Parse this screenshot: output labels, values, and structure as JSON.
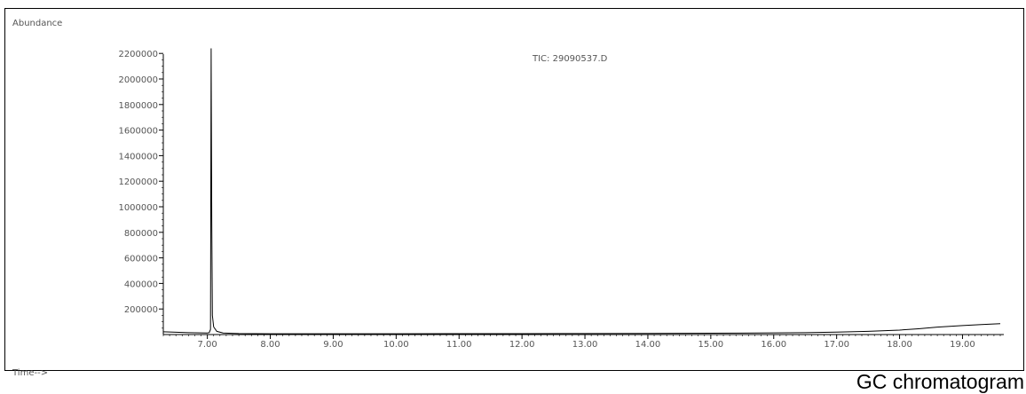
{
  "chart_data": {
    "type": "line",
    "title": "TIC: 29090537.D",
    "ylabel": "Abundance",
    "xlabel": "Time-->",
    "xlim": [
      6.3,
      19.6
    ],
    "ylim": [
      0,
      2250000
    ],
    "x_ticks": [
      "7.00",
      "8.00",
      "9.00",
      "10.00",
      "11.00",
      "12.00",
      "13.00",
      "14.00",
      "15.00",
      "16.00",
      "17.00",
      "18.00",
      "19.00"
    ],
    "x_tick_values": [
      7,
      8,
      9,
      10,
      11,
      12,
      13,
      14,
      15,
      16,
      17,
      18,
      19
    ],
    "y_ticks": [
      "200000",
      "400000",
      "600000",
      "800000",
      "1000000",
      "1200000",
      "1400000",
      "1600000",
      "1800000",
      "2000000",
      "2200000"
    ],
    "y_tick_values": [
      200000,
      400000,
      600000,
      800000,
      1000000,
      1200000,
      1400000,
      1600000,
      1800000,
      2000000,
      2200000
    ],
    "grid": false,
    "series": [
      {
        "color": "#000000",
        "x": [
          6.3,
          6.5,
          6.7,
          6.9,
          7.0,
          7.03,
          7.05,
          7.06,
          7.07,
          7.08,
          7.1,
          7.15,
          7.25,
          7.5,
          8.0,
          9.0,
          10.0,
          11.0,
          12.0,
          13.0,
          14.0,
          15.0,
          15.5,
          16.0,
          16.5,
          17.0,
          17.5,
          18.0,
          18.3,
          18.6,
          19.0,
          19.3,
          19.6
        ],
        "y": [
          22000,
          18000,
          15000,
          13000,
          12000,
          15000,
          40000,
          2240000,
          900000,
          150000,
          60000,
          25000,
          12000,
          8000,
          6000,
          6000,
          6000,
          7000,
          7000,
          8000,
          9000,
          10000,
          11000,
          13000,
          15000,
          19000,
          25000,
          35000,
          45000,
          58000,
          70000,
          78000,
          85000
        ]
      }
    ]
  },
  "caption": "GC chromatogram"
}
